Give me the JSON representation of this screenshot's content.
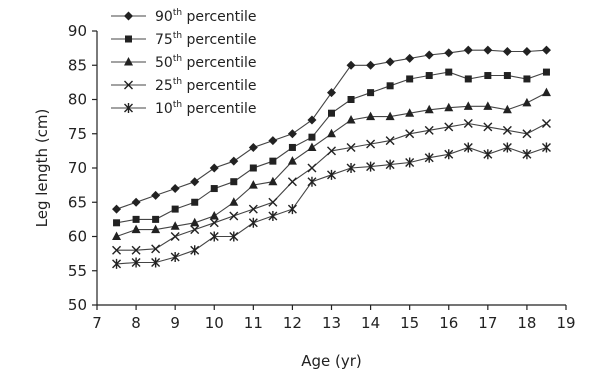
{
  "chart_data": {
    "type": "line",
    "title": "",
    "xlabel": "Age (yr)",
    "ylabel": "Leg length (cm)",
    "xlim": [
      7,
      19
    ],
    "ylim": [
      50,
      90
    ],
    "xticks": [
      "7",
      "8",
      "9",
      "10",
      "11",
      "12",
      "13",
      "14",
      "15",
      "16",
      "17",
      "18",
      "19"
    ],
    "yticks": [
      "50",
      "55",
      "60",
      "65",
      "70",
      "75",
      "80",
      "85",
      "90"
    ],
    "grid": false,
    "legend_position": "top-left",
    "x": [
      7.5,
      8,
      8.5,
      9,
      9.5,
      10,
      10.5,
      11,
      11.5,
      12,
      12.5,
      13,
      13.5,
      14,
      14.5,
      15,
      15.5,
      16,
      16.5,
      17,
      17.5,
      18,
      18.5
    ],
    "series": [
      {
        "name": "90th percentile",
        "legend_base": "90",
        "legend_sup": "th",
        "legend_rest": " percentile",
        "marker": "diamond",
        "values": [
          64,
          65,
          66,
          67,
          68,
          70,
          71,
          73,
          74,
          75,
          77,
          81,
          85,
          85,
          85.5,
          86,
          86.5,
          86.8,
          87.2,
          87.2,
          87,
          87,
          87.2
        ]
      },
      {
        "name": "75th percentile",
        "legend_base": "75",
        "legend_sup": "th",
        "legend_rest": " percentile",
        "marker": "square",
        "values": [
          62,
          62.5,
          62.5,
          64,
          65,
          67,
          68,
          70,
          71,
          73,
          74.5,
          78,
          80,
          81,
          82,
          83,
          83.5,
          84,
          83,
          83.5,
          83.5,
          83,
          84
        ]
      },
      {
        "name": "50th percentile",
        "legend_base": "50",
        "legend_sup": "th",
        "legend_rest": " percentile",
        "marker": "triangle",
        "values": [
          60,
          61,
          61,
          61.5,
          62,
          63,
          65,
          67.5,
          68,
          71,
          73,
          75,
          77,
          77.5,
          77.5,
          78,
          78.5,
          78.8,
          79,
          79,
          78.5,
          79.5,
          81
        ]
      },
      {
        "name": "25th percentile",
        "legend_base": "25",
        "legend_sup": "th",
        "legend_rest": " percentile",
        "marker": "x",
        "values": [
          58,
          58,
          58.2,
          60,
          61,
          62,
          63,
          64,
          65,
          68,
          70,
          72.5,
          73,
          73.5,
          74,
          75,
          75.5,
          76,
          76.5,
          76,
          75.5,
          75,
          76.5
        ]
      },
      {
        "name": "10th percentile",
        "legend_base": "10",
        "legend_sup": "th",
        "legend_rest": " percentile",
        "marker": "star",
        "values": [
          56,
          56.2,
          56.2,
          57,
          58,
          60,
          60,
          62,
          63,
          64,
          68,
          69,
          70,
          70.2,
          70.5,
          70.8,
          71.5,
          72,
          73,
          72,
          73,
          72,
          73
        ]
      }
    ]
  }
}
